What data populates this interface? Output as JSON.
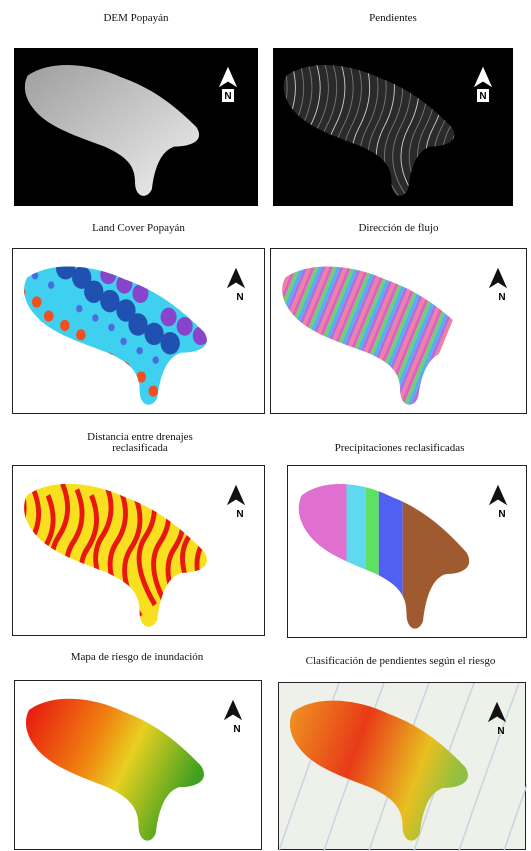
{
  "panels": [
    {
      "title": "DEM Popayán",
      "north": "N"
    },
    {
      "title": "Pendientes",
      "north": "N"
    },
    {
      "title": "Land Cover Popayán",
      "north": "N"
    },
    {
      "title": "Dirección de flujo",
      "north": "N"
    },
    {
      "title": "Distancia entre drenajes reclasificada",
      "north": "N"
    },
    {
      "title": "Precipitaciones reclasificadas",
      "north": "N"
    },
    {
      "title": "Mapa de riesgo de inundación",
      "north": "N"
    },
    {
      "title": "Clasificación de pendientes según el riesgo",
      "north": "N"
    }
  ]
}
